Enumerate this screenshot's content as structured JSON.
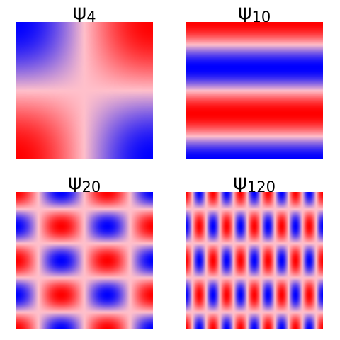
{
  "panels": [
    {
      "symbol": "ψ",
      "index": "4",
      "mode": [
        1,
        1
      ]
    },
    {
      "symbol": "ψ",
      "index": "10",
      "mode": [
        0,
        3
      ]
    },
    {
      "symbol": "ψ",
      "index": "20",
      "mode": [
        3,
        4
      ]
    },
    {
      "symbol": "ψ",
      "index": "120",
      "mode": [
        10,
        4
      ]
    }
  ],
  "colors": {
    "negative": "#0000ff",
    "zero": "#ffc0cb",
    "positive": "#ff0000"
  }
}
